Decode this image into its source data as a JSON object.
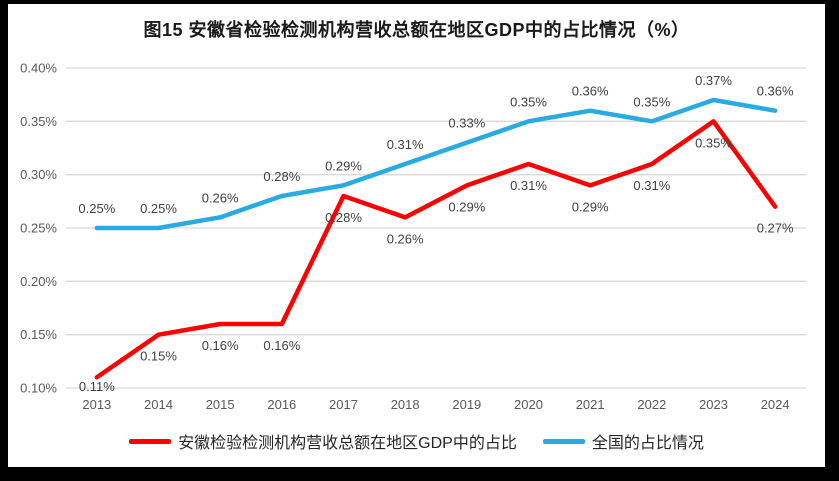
{
  "chart_data": {
    "type": "line",
    "title": "图15 安徽省检验检测机构营收总额在地区GDP中的占比情况（%）",
    "categories": [
      "2013",
      "2014",
      "2015",
      "2016",
      "2017",
      "2018",
      "2019",
      "2020",
      "2021",
      "2022",
      "2023",
      "2024"
    ],
    "series": [
      {
        "name": "安徽检验检测机构营收总额在地区GDP中的占比",
        "color": "#FF0000",
        "values": [
          0.11,
          0.15,
          0.16,
          0.16,
          0.28,
          0.26,
          0.29,
          0.31,
          0.29,
          0.31,
          0.35,
          0.27
        ],
        "labels": [
          "0.11%",
          "0.15%",
          "0.16%",
          "0.16%",
          "0.28%",
          "0.26%",
          "0.29%",
          "0.31%",
          "0.29%",
          "0.31%",
          "0.35%",
          "0.27%"
        ],
        "label_position": "below"
      },
      {
        "name": "全国的占比情况",
        "color": "#29ABE2",
        "values": [
          0.25,
          0.25,
          0.26,
          0.28,
          0.29,
          0.31,
          0.33,
          0.35,
          0.36,
          0.35,
          0.37,
          0.36
        ],
        "labels": [
          "0.25%",
          "0.25%",
          "0.26%",
          "0.28%",
          "0.29%",
          "0.31%",
          "0.33%",
          "0.35%",
          "0.36%",
          "0.35%",
          "0.37%",
          "0.36%"
        ],
        "label_position": "above"
      }
    ],
    "y_axis": {
      "min": 0.1,
      "max": 0.4,
      "ticks": [
        {
          "value": 0.4,
          "label": "0.40%"
        },
        {
          "value": 0.35,
          "label": "0.35%"
        },
        {
          "value": 0.3,
          "label": "0.30%"
        },
        {
          "value": 0.25,
          "label": "0.25%"
        },
        {
          "value": 0.2,
          "label": "0.20%"
        },
        {
          "value": 0.15,
          "label": "0.15%"
        },
        {
          "value": 0.1,
          "label": "0.10%"
        }
      ]
    },
    "grid": true,
    "legend_position": "bottom",
    "colors": {
      "grid": "#D9D9D9",
      "axis_text": "#595959",
      "label_text": "#404040",
      "background": "#FFFFFF",
      "frame": "#000000"
    }
  }
}
